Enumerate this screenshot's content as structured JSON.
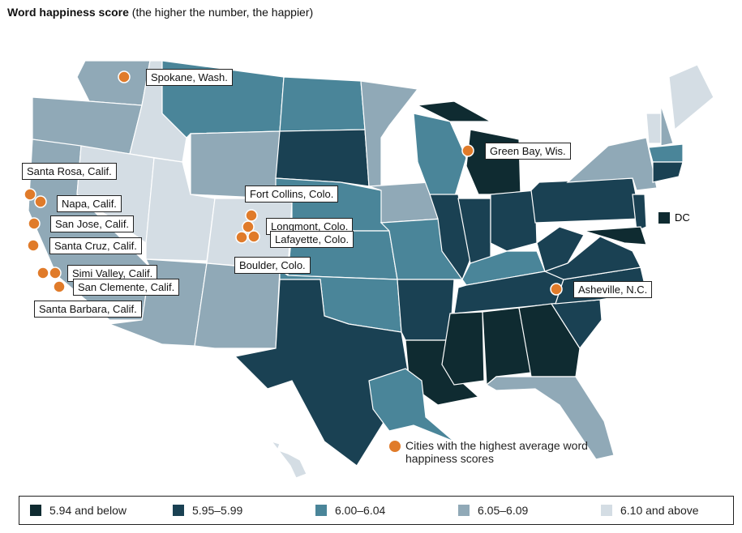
{
  "title": {
    "bold": "Word happiness score",
    "rest": " (the higher the number, the happier)"
  },
  "bins": [
    {
      "label": "5.94 and below",
      "color": "#0f2b31"
    },
    {
      "label": "5.95–5.99",
      "color": "#1a4153"
    },
    {
      "label": "6.00–6.04",
      "color": "#4a8599"
    },
    {
      "label": "6.05–6.09",
      "color": "#90a9b7"
    },
    {
      "label": "6.10 and above",
      "color": "#d4dde4"
    }
  ],
  "states": {
    "WA": 3,
    "OR": 3,
    "CA": 3,
    "ID": 4,
    "NV": 4,
    "UT": 4,
    "AZ": 3,
    "MT": 2,
    "WY": 3,
    "CO": 4,
    "NM": 3,
    "ND": 2,
    "SD": 1,
    "NE": 2,
    "KS": 2,
    "OK": 2,
    "TX": 1,
    "MN": 3,
    "IA": 3,
    "MO": 2,
    "AR": 1,
    "LA": 0,
    "WI": 2,
    "IL": 1,
    "MI": 0,
    "MIU": 0,
    "IN": 1,
    "OH": 1,
    "KY": 2,
    "TN": 1,
    "MS": 0,
    "AL": 0,
    "GA": 0,
    "FL": 3,
    "SC": 1,
    "NC": 1,
    "VA": 1,
    "WV": 1,
    "PA": 1,
    "NY": 3,
    "NJ": 1,
    "MD": 0,
    "VT": 4,
    "NH": 3,
    "ME": 4,
    "MA": 2,
    "CT": 1,
    "AK": 2,
    "HI": 4
  },
  "dc": {
    "label": "DC",
    "bin": 0
  },
  "cities": [
    "Spokane, Wash.",
    "Green Bay, Wis.",
    "Santa Rosa, Calif.",
    "Napa, Calif.",
    "San Jose, Calif.",
    "Santa Cruz, Calif.",
    "Simi Valley, Calif.",
    "San Clemente, Calif.",
    "Santa Barbara, Calif.",
    "Fort Collins, Colo.",
    "Longmont, Colo.",
    "Lafayette, Colo.",
    "Boulder, Colo.",
    "Asheville, N.C."
  ],
  "city_color": "#e07b2a",
  "city_legend": "Cities with the highest average word happiness scores"
}
